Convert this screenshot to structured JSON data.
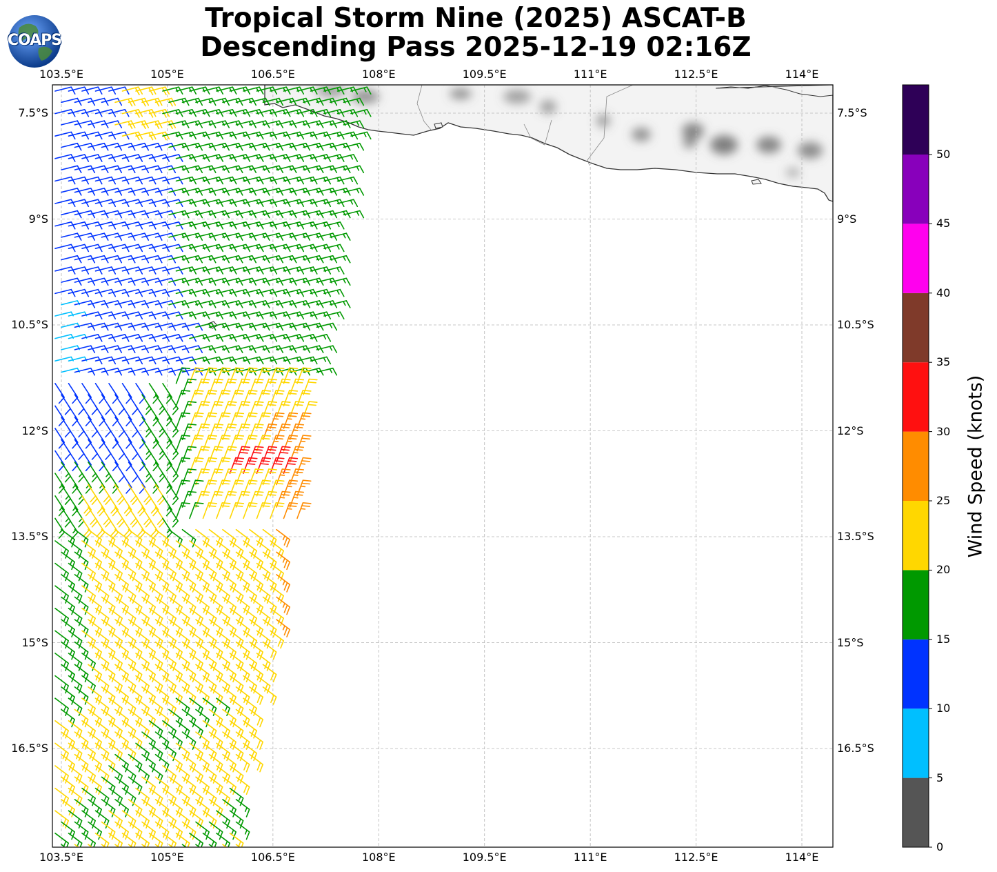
{
  "title": {
    "line1": "Tropical Storm Nine (2025) ASCAT-B",
    "line2": "Descending Pass 2025-12-19 02:16Z"
  },
  "logo": {
    "text": "COAPS"
  },
  "map": {
    "lon_range": [
      103.4,
      114.45
    ],
    "lat_range": [
      -18.0,
      -7.1
    ],
    "lon_ticks": [
      "103.5°E",
      "105°E",
      "106.5°E",
      "108°E",
      "109.5°E",
      "111°E",
      "112.5°E",
      "114°E"
    ],
    "lat_ticks": [
      "7.5°S",
      "9°S",
      "10.5°S",
      "12°S",
      "13.5°S",
      "15°S",
      "16.5°S"
    ],
    "gridlines": true,
    "land": "Java (grayscale topography, top-right)",
    "barb_field": "wind barbs over western portion of the pass, strongest winds (25-35 kt) near 106.0-106.8°E, 12.5-13.5°S"
  },
  "colorbar": {
    "title": "Wind Speed (knots)",
    "ticks": [
      "0",
      "5",
      "10",
      "15",
      "20",
      "25",
      "30",
      "35",
      "40",
      "45",
      "50"
    ],
    "bins": [
      {
        "range": "0-5",
        "color": "#555555"
      },
      {
        "range": "5-10",
        "color": "#00bfff"
      },
      {
        "range": "10-15",
        "color": "#0033ff"
      },
      {
        "range": "15-20",
        "color": "#009900"
      },
      {
        "range": "20-25",
        "color": "#ffd700"
      },
      {
        "range": "25-30",
        "color": "#ff8c00"
      },
      {
        "range": "30-35",
        "color": "#ff1010"
      },
      {
        "range": "35-40",
        "color": "#7f3a2a"
      },
      {
        "range": "40-45",
        "color": "#ff00ee"
      },
      {
        "range": "45-50",
        "color": "#8800bb"
      },
      {
        "range": "50+",
        "color": "#2e0057"
      }
    ]
  }
}
